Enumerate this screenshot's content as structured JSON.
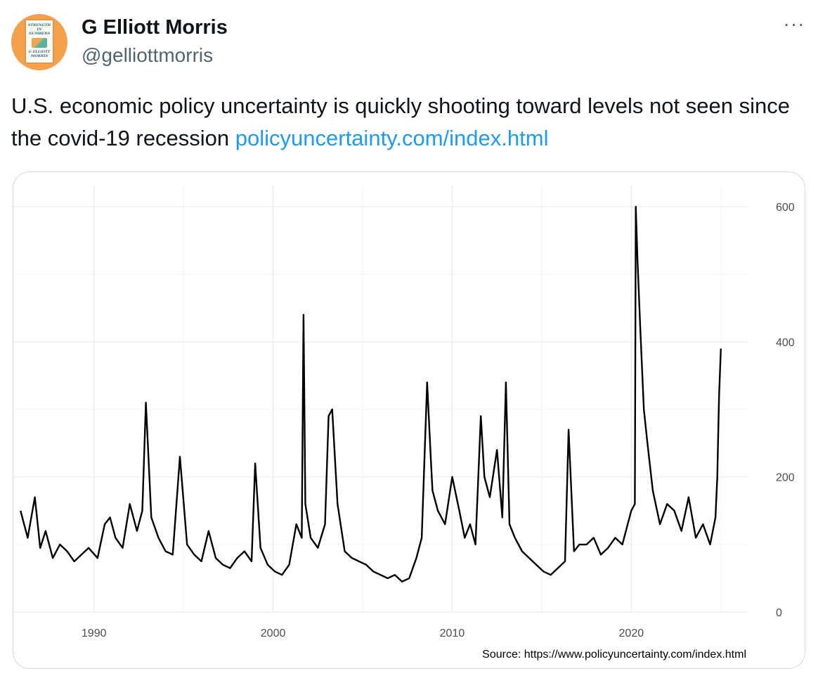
{
  "tweet": {
    "author_name": "G Elliott Morris",
    "author_handle": "@gelliottmorris",
    "more_icon": "more-horizontal-icon",
    "more_glyph": "···",
    "text_before_link": "U.S. economic policy uncertainty is quickly shooting toward levels not seen since the covid-19 recession ",
    "link_text": "policyuncertainty.com/index.html",
    "avatar": {
      "background": "#f5a04a",
      "book_lines": [
        "STRENGTH",
        "IN",
        "NUMBERS",
        "G ELLIOTT",
        "MORRIS"
      ]
    }
  },
  "colors": {
    "name": "#0f1419",
    "secondary": "#536471",
    "link": "#1d9bf0",
    "series": "#000000"
  },
  "chart_data": {
    "type": "line",
    "title": "",
    "xlabel": "",
    "ylabel": "",
    "xlim": [
      1985.5,
      2026.5
    ],
    "ylim": [
      0,
      620
    ],
    "x_ticks": [
      1990,
      2000,
      2010,
      2020
    ],
    "y_ticks": [
      0,
      200,
      400,
      600
    ],
    "y_axis_position": "right",
    "grid": true,
    "legend": "none",
    "annotation": "Source: https://www.policyuncertainty.com/index.html",
    "series": [
      {
        "values_note": "",
        "x": [
          1985.9,
          1986.3,
          1986.7,
          1987.0,
          1987.3,
          1987.7,
          1988.1,
          1988.5,
          1988.9,
          1989.3,
          1989.7,
          1990.2,
          1990.6,
          1990.9,
          1991.2,
          1991.6,
          1992.0,
          1992.4,
          1992.7,
          1992.9,
          1993.2,
          1993.6,
          1994.0,
          1994.4,
          1994.8,
          1995.2,
          1995.6,
          1996.0,
          1996.4,
          1996.8,
          1997.2,
          1997.6,
          1998.0,
          1998.4,
          1998.8,
          1999.0,
          1999.3,
          1999.7,
          2000.1,
          2000.5,
          2000.9,
          2001.3,
          2001.6,
          2001.7,
          2001.8,
          2002.1,
          2002.5,
          2002.9,
          2003.1,
          2003.3,
          2003.6,
          2004.0,
          2004.4,
          2004.8,
          2005.2,
          2005.6,
          2006.0,
          2006.4,
          2006.8,
          2007.2,
          2007.6,
          2008.0,
          2008.3,
          2008.6,
          2008.8,
          2008.9,
          2009.2,
          2009.6,
          2010.0,
          2010.4,
          2010.7,
          2011.0,
          2011.3,
          2011.6,
          2011.8,
          2012.1,
          2012.5,
          2012.8,
          2013.0,
          2013.2,
          2013.5,
          2013.9,
          2014.3,
          2014.7,
          2015.1,
          2015.5,
          2015.9,
          2016.3,
          2016.5,
          2016.8,
          2017.1,
          2017.5,
          2017.9,
          2018.3,
          2018.7,
          2019.1,
          2019.5,
          2019.8,
          2020.0,
          2020.2,
          2020.25,
          2020.35,
          2020.5,
          2020.7,
          2020.9,
          2021.2,
          2021.6,
          2022.0,
          2022.4,
          2022.8,
          2023.2,
          2023.6,
          2024.0,
          2024.4,
          2024.7,
          2024.8,
          2024.9,
          2025.0
        ],
        "values": [
          150,
          110,
          170,
          95,
          120,
          80,
          100,
          90,
          75,
          85,
          95,
          80,
          130,
          140,
          110,
          95,
          160,
          120,
          150,
          310,
          140,
          110,
          90,
          85,
          230,
          100,
          85,
          75,
          120,
          80,
          70,
          65,
          80,
          90,
          75,
          220,
          95,
          70,
          60,
          55,
          70,
          130,
          110,
          440,
          160,
          110,
          95,
          130,
          290,
          300,
          160,
          90,
          80,
          75,
          70,
          60,
          55,
          50,
          55,
          45,
          50,
          80,
          110,
          340,
          230,
          180,
          150,
          130,
          200,
          150,
          110,
          130,
          100,
          290,
          200,
          170,
          240,
          140,
          340,
          130,
          110,
          90,
          80,
          70,
          60,
          55,
          65,
          75,
          270,
          90,
          100,
          100,
          110,
          85,
          95,
          110,
          100,
          130,
          150,
          160,
          600,
          520,
          420,
          300,
          250,
          180,
          130,
          160,
          150,
          120,
          170,
          110,
          130,
          100,
          140,
          200,
          320,
          390
        ]
      }
    ]
  }
}
